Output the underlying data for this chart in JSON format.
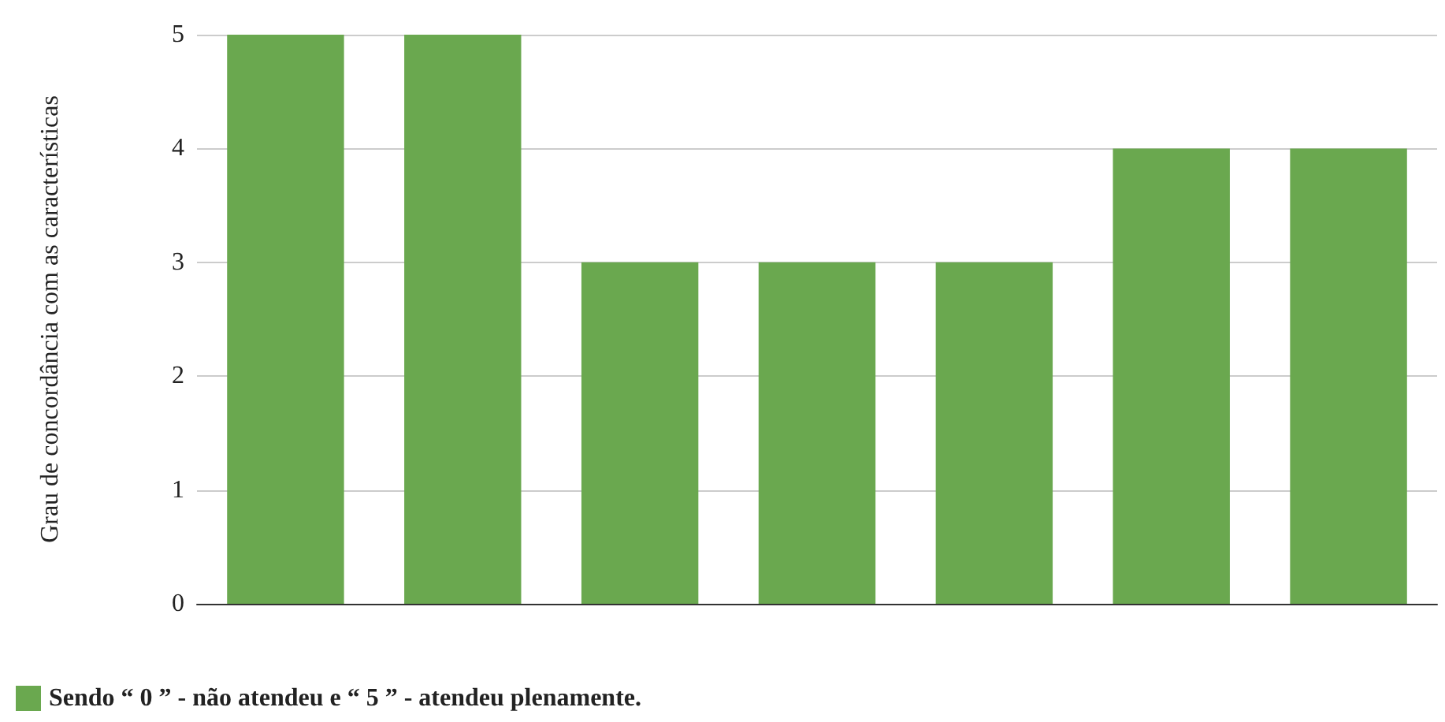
{
  "chart_data": {
    "type": "bar",
    "ylabel": "Grau de concordância com as características",
    "categories": [
      null,
      null,
      null,
      null,
      null,
      null,
      null
    ],
    "series": [
      {
        "name": "Sendo “ 0 ” - não atendeu e “ 5 ” - atendeu plenamente.",
        "color": "#6aa84f",
        "values": [
          5,
          5,
          3,
          3,
          3,
          4,
          4
        ]
      }
    ],
    "ylim": [
      0,
      5
    ],
    "yticks": [
      0,
      1,
      2,
      3,
      4,
      5
    ],
    "grid": "y",
    "legend": "bottom left"
  }
}
